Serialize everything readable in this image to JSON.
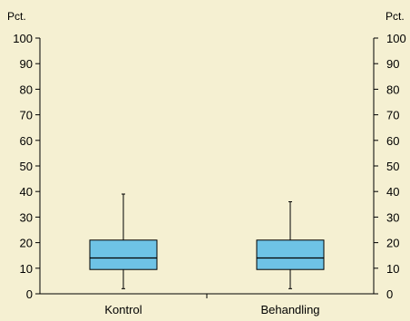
{
  "chart_data": {
    "type": "box",
    "title": "",
    "y_unit_left": "Pct.",
    "y_unit_right": "Pct.",
    "ylim": [
      0,
      100
    ],
    "yticks": [
      0,
      10,
      20,
      30,
      40,
      50,
      60,
      70,
      80,
      90,
      100
    ],
    "categories": [
      "Kontrol",
      "Behandling"
    ],
    "boxes": [
      {
        "name": "Kontrol",
        "min": 2,
        "q1": 9.5,
        "median": 14,
        "q3": 21,
        "max": 39
      },
      {
        "name": "Behandling",
        "min": 2,
        "q1": 9.5,
        "median": 14,
        "q3": 21,
        "max": 36
      }
    ],
    "grid": false,
    "colors": {
      "box_fill": "#6ec3e6",
      "stroke": "#000000",
      "background": "#f5f0d2"
    }
  }
}
